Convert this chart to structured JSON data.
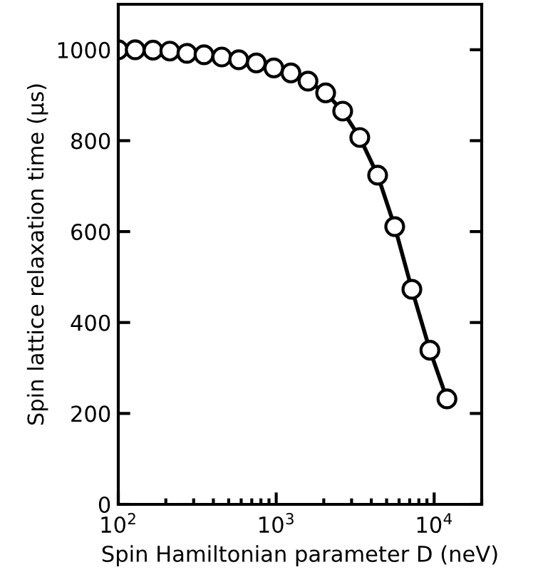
{
  "chart_data": {
    "type": "line",
    "xlabel": "Spin Hamiltonian parameter D (neV)",
    "ylabel": "Spin lattice relaxation time (μs)",
    "x": [
      100,
      128,
      166,
      212,
      272,
      349,
      452,
      579,
      748,
      966,
      1239,
      1589,
      2056,
      2636,
      3382,
      4387,
      5627,
      7228,
      9397,
      12050
    ],
    "series": [
      {
        "color": "#000000",
        "values": [
          1000,
          1000,
          999,
          997,
          992,
          989,
          984,
          978,
          971,
          960,
          949,
          931,
          905,
          865,
          807,
          724,
          611,
          473,
          339,
          232
        ]
      }
    ],
    "xlim": [
      100,
      20000
    ],
    "ylim": [
      0,
      1100
    ],
    "xticks": [
      {
        "value": 100,
        "label": "10$^{2}$"
      },
      {
        "value": 1000,
        "label": "10$^{3}$"
      },
      {
        "value": 10000,
        "label": "10$^{4}$"
      }
    ],
    "yticks": [
      0,
      200,
      400,
      600,
      800,
      1000
    ],
    "log": "x",
    "marker": "circle",
    "line_style": "solid",
    "grid": false
  }
}
